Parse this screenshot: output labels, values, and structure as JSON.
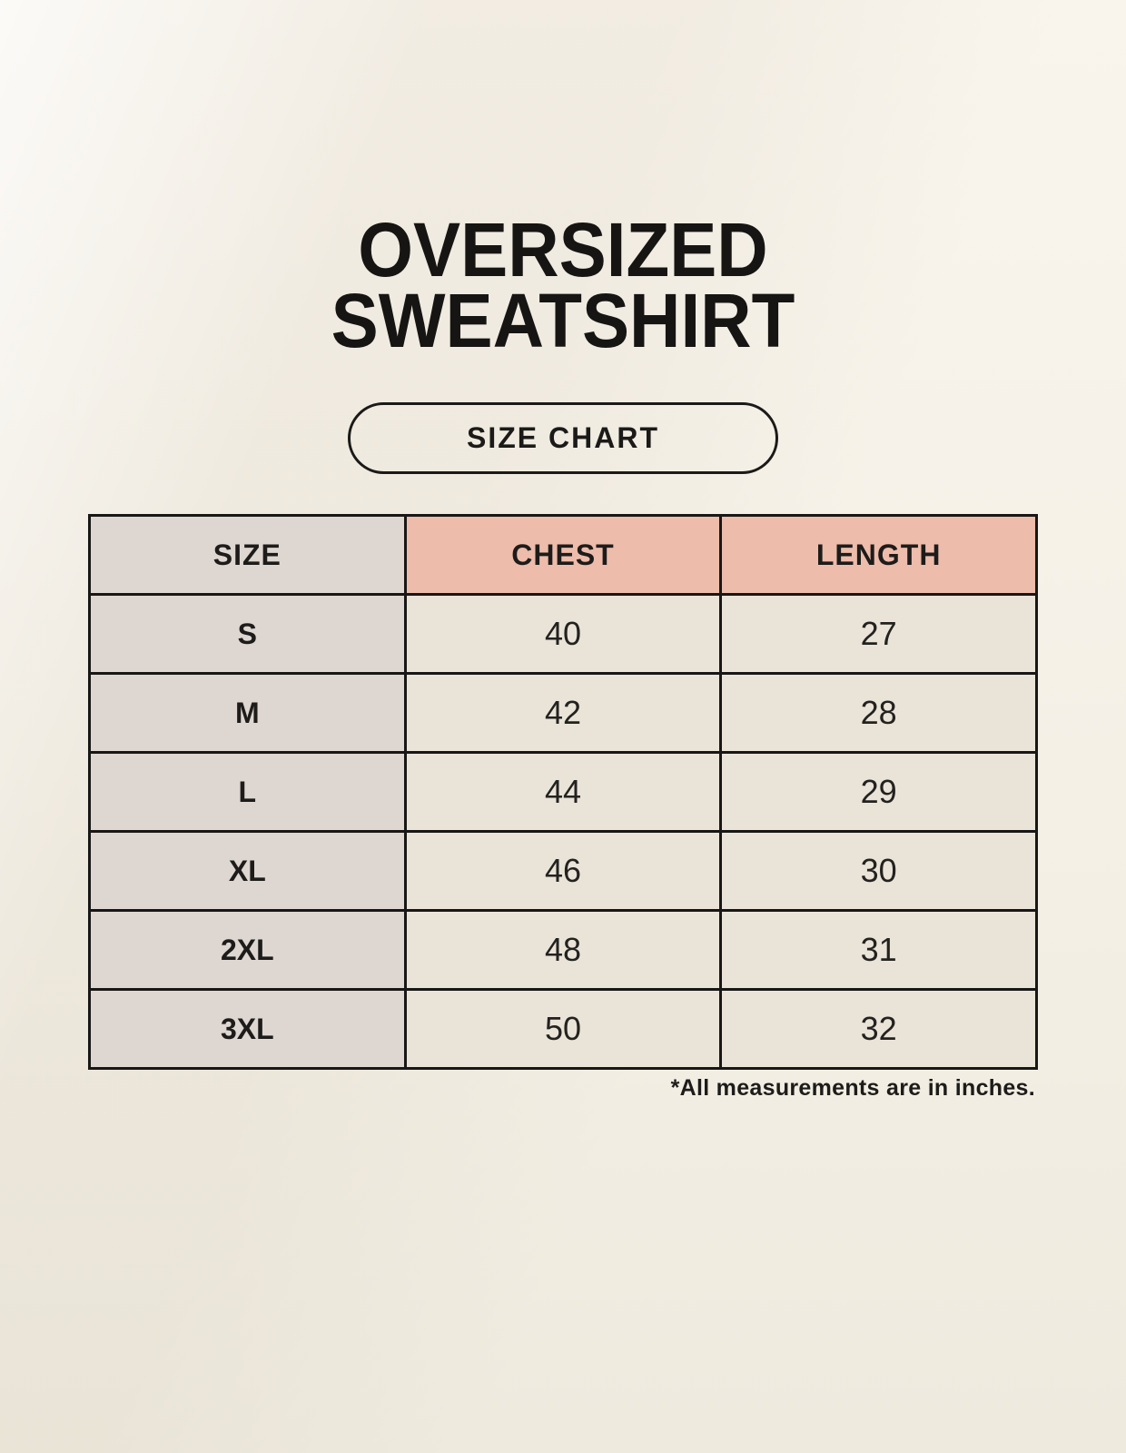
{
  "header": {
    "title_line1": "OVERSIZED",
    "title_line2": "SWEATSHIRT",
    "size_chart_button": "SIZE CHART"
  },
  "chart_data": {
    "type": "table",
    "title": "OVERSIZED SWEATSHIRT",
    "subtitle": "SIZE CHART",
    "columns": [
      "SIZE",
      "CHEST",
      "LENGTH"
    ],
    "rows": [
      [
        "S",
        "40",
        "27"
      ],
      [
        "M",
        "42",
        "28"
      ],
      [
        "L",
        "44",
        "29"
      ],
      [
        "XL",
        "46",
        "30"
      ],
      [
        "2XL",
        "48",
        "31"
      ],
      [
        "3XL",
        "50",
        "32"
      ]
    ],
    "units_note": "*All measurements are in inches.",
    "layout_hints": {
      "columns_equal_width": true,
      "grid": "full black borders",
      "note_alignment": "right"
    }
  },
  "colors": {
    "page_background": "#f5f1e7",
    "size_column_bg": "#ded6d0",
    "measure_header_bg": "#edbcab",
    "value_cell_bg": "#eae3d8",
    "table_border": "#181716",
    "text": "#1d1c1a"
  }
}
